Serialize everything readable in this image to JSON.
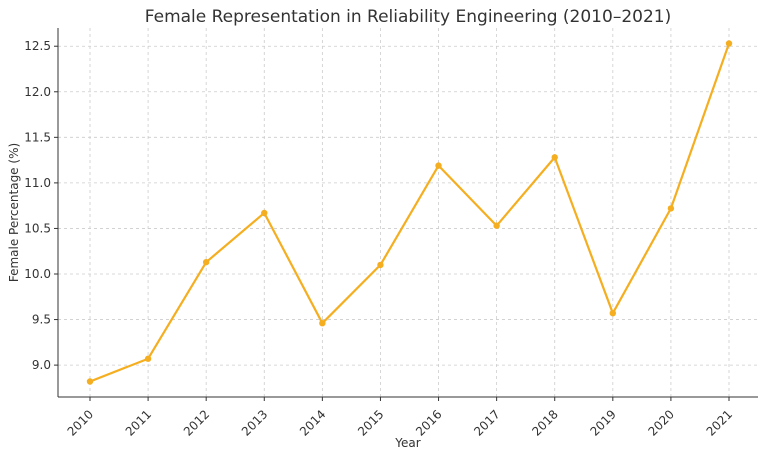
{
  "chart_data": {
    "type": "line",
    "title": "Female Representation in Reliability Engineering (2010–2021)",
    "xlabel": "Year",
    "ylabel": "Female Percentage (%)",
    "x": [
      "2010",
      "2011",
      "2012",
      "2013",
      "2014",
      "2015",
      "2016",
      "2017",
      "2018",
      "2019",
      "2020",
      "2021"
    ],
    "series": [
      {
        "values": [
          8.82,
          9.07,
          10.13,
          10.67,
          9.46,
          10.1,
          11.19,
          10.53,
          11.28,
          9.57,
          10.72,
          12.53
        ]
      }
    ],
    "yticks": [
      "9.0",
      "9.5",
      "10.0",
      "10.5",
      "11.0",
      "11.5",
      "12.0",
      "12.5"
    ],
    "ylim": [
      8.65,
      12.7
    ],
    "grid": true,
    "legend": "none",
    "colors": {
      "line": "#f5ae1f",
      "grid": "#cccccc",
      "axis": "#333333"
    }
  }
}
